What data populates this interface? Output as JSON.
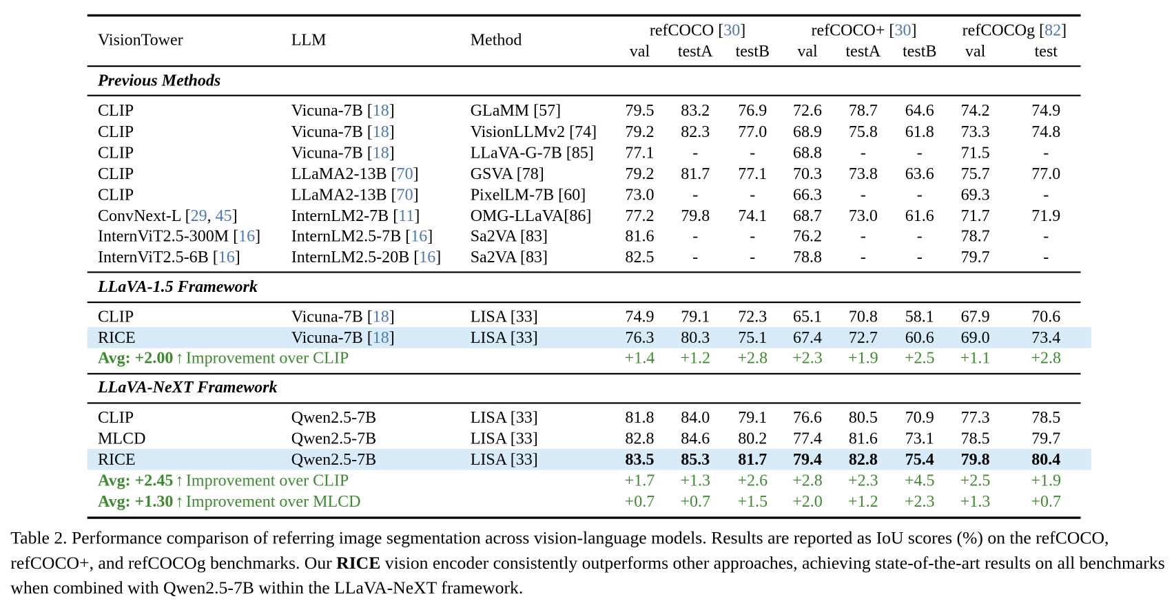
{
  "header": {
    "vision_tower": "VisionTower",
    "llm": "LLM",
    "method": "Method",
    "groups": [
      "refCOCO [30]",
      "refCOCO+ [30]",
      "refCOCOg [82]"
    ],
    "subcolumns": [
      "val",
      "testA",
      "testB",
      "val",
      "testA",
      "testB",
      "val",
      "test"
    ]
  },
  "sections": [
    {
      "title": "Previous Methods",
      "rows": [
        {
          "vision": "CLIP",
          "llm": "Vicuna-7B [18]",
          "method": "GLaMM [57]",
          "values": [
            "79.5",
            "83.2",
            "76.9",
            "72.6",
            "78.7",
            "64.6",
            "74.2",
            "74.9"
          ]
        },
        {
          "vision": "CLIP",
          "llm": "Vicuna-7B [18]",
          "method": "VisionLLMv2 [74]",
          "values": [
            "79.2",
            "82.3",
            "77.0",
            "68.9",
            "75.8",
            "61.8",
            "73.3",
            "74.8"
          ]
        },
        {
          "vision": "CLIP",
          "llm": "Vicuna-7B [18]",
          "method": "LLaVA-G-7B [85]",
          "values": [
            "77.1",
            "-",
            "-",
            "68.8",
            "-",
            "-",
            "71.5",
            "-"
          ]
        },
        {
          "vision": "CLIP",
          "llm": "LLaMA2-13B [70]",
          "method": "GSVA [78]",
          "values": [
            "79.2",
            "81.7",
            "77.1",
            "70.3",
            "73.8",
            "63.6",
            "75.7",
            "77.0"
          ]
        },
        {
          "vision": "CLIP",
          "llm": "LLaMA2-13B [70]",
          "method": "PixelLM-7B [60]",
          "values": [
            "73.0",
            "-",
            "-",
            "66.3",
            "-",
            "-",
            "69.3",
            "-"
          ]
        },
        {
          "vision": "ConvNext-L [29, 45]",
          "llm": "InternLM2-7B [11]",
          "method": "OMG-LLaVA[86]",
          "values": [
            "77.2",
            "79.8",
            "74.1",
            "68.7",
            "73.0",
            "61.6",
            "71.7",
            "71.9"
          ]
        },
        {
          "vision": "InternViT2.5-300M [16]",
          "llm": "InternLM2.5-7B [16]",
          "method": "Sa2VA [83]",
          "values": [
            "81.6",
            "-",
            "-",
            "76.2",
            "-",
            "-",
            "78.7",
            "-"
          ]
        },
        {
          "vision": "InternViT2.5-6B [16]",
          "llm": "InternLM2.5-20B [16]",
          "method": "Sa2VA [83]",
          "values": [
            "82.5",
            "-",
            "-",
            "78.8",
            "-",
            "-",
            "79.7",
            "-"
          ]
        }
      ],
      "improvements": []
    },
    {
      "title": "LLaVA-1.5 Framework",
      "rows": [
        {
          "vision": "CLIP",
          "llm": "Vicuna-7B [18]",
          "method": "LISA [33]",
          "values": [
            "74.9",
            "79.1",
            "72.3",
            "65.1",
            "70.8",
            "58.1",
            "67.9",
            "70.6"
          ]
        },
        {
          "vision": "RICE",
          "llm": "Vicuna-7B [18]",
          "method": "LISA [33]",
          "values": [
            "76.3",
            "80.3",
            "75.1",
            "67.4",
            "72.7",
            "60.6",
            "69.0",
            "73.4"
          ],
          "highlight": true
        }
      ],
      "improvements": [
        {
          "avg": "Avg: +2.00",
          "arrow": "↑",
          "label": "Improvement over CLIP",
          "values": [
            "+1.4",
            "+1.2",
            "+2.8",
            "+2.3",
            "+1.9",
            "+2.5",
            "+1.1",
            "+2.8"
          ]
        }
      ]
    },
    {
      "title": "LLaVA-NeXT Framework",
      "rows": [
        {
          "vision": "CLIP",
          "llm": "Qwen2.5-7B",
          "method": "LISA [33]",
          "values": [
            "81.8",
            "84.0",
            "79.1",
            "76.6",
            "80.5",
            "70.9",
            "77.3",
            "78.5"
          ]
        },
        {
          "vision": "MLCD",
          "llm": "Qwen2.5-7B",
          "method": "LISA [33]",
          "values": [
            "82.8",
            "84.6",
            "80.2",
            "77.4",
            "81.6",
            "73.1",
            "78.5",
            "79.7"
          ]
        },
        {
          "vision": "RICE",
          "llm": "Qwen2.5-7B",
          "method": "LISA [33]",
          "values": [
            "83.5",
            "85.3",
            "81.7",
            "79.4",
            "82.8",
            "75.4",
            "79.8",
            "80.4"
          ],
          "highlight": true,
          "bold": true
        }
      ],
      "improvements": [
        {
          "avg": "Avg: +2.45",
          "arrow": "↑",
          "label": "Improvement over CLIP",
          "values": [
            "+1.7",
            "+1.3",
            "+2.6",
            "+2.8",
            "+2.3",
            "+4.5",
            "+2.5",
            "+1.9"
          ]
        },
        {
          "avg": "Avg: +1.30",
          "arrow": "↑",
          "label": "Improvement over MLCD",
          "values": [
            "+0.7",
            "+0.7",
            "+1.5",
            "+2.0",
            "+1.2",
            "+2.3",
            "+1.3",
            "+0.7"
          ]
        }
      ]
    }
  ],
  "caption": {
    "before": "Table 2. Performance comparison of referring image segmentation across vision-language models. Results are reported as IoU scores (%) on the refCOCO, refCOCO+, and refCOCOg benchmarks. Our ",
    "bold": "RICE",
    "after": " vision encoder consistently outperforms other approaches, achieving state-of-the-art results on all benchmarks when combined with Qwen2.5-7B within the LLaVA-NeXT framework."
  },
  "colors": {
    "improvement": "#3d8b2f",
    "citation": "#4a78b8",
    "highlight": "#d8ebf8"
  }
}
